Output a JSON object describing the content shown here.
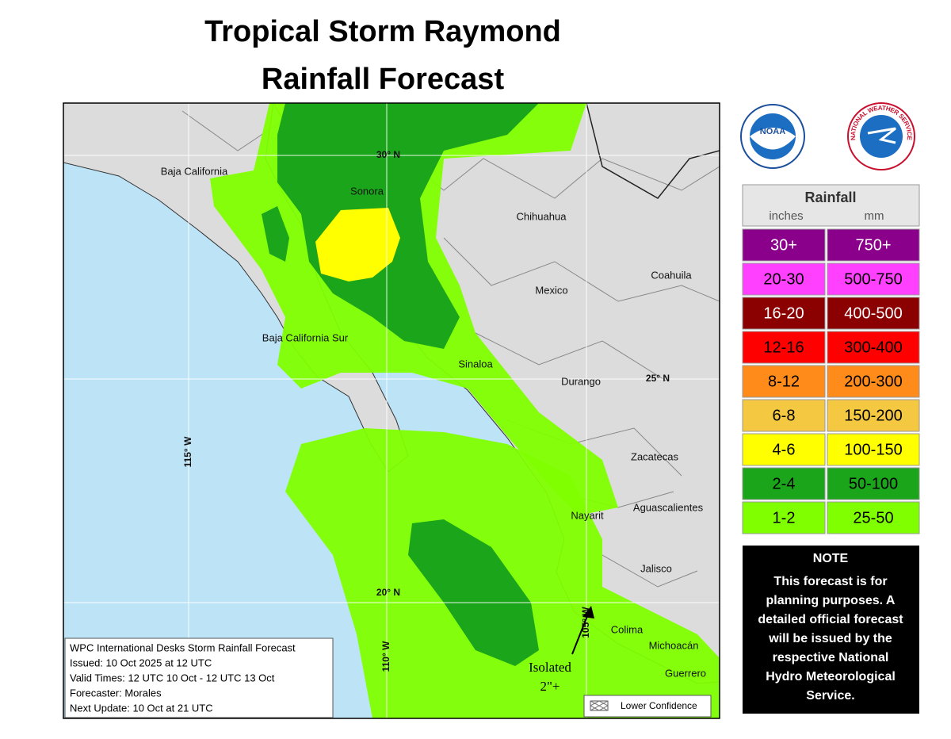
{
  "title": {
    "line1": "Tropical Storm Raymond",
    "line2": "Rainfall Forecast"
  },
  "map_labels": [
    "Baja California",
    "Sonora",
    "Chihuahua",
    "Coahuila",
    "Mexico",
    "Baja California Sur",
    "Sinaloa",
    "Durango",
    "Zacatecas",
    "Aguascalientes",
    "Nayarit",
    "Jalisco",
    "Colima",
    "Michoacán",
    "Guerrero"
  ],
  "grid_labels": [
    "30° N",
    "25° N",
    "20° N",
    "115° W",
    "110° W",
    "105° W"
  ],
  "annotation": {
    "line1": "Isolated",
    "line2": "2\"+"
  },
  "info_box": [
    "WPC International Desks Storm Rainfall Forecast",
    "Issued: 10 Oct 2025 at 12 UTC",
    "Valid Times: 12 UTC 10 Oct - 12 UTC 13 Oct",
    "Forecaster: Morales",
    "Next Update: 10 Oct at 21 UTC"
  ],
  "lower_confidence": "Lower Confidence",
  "logos": {
    "noaa": "NOAA",
    "nws": "NATIONAL WEATHER SERVICE"
  },
  "legend": {
    "title": "Rainfall",
    "units": [
      "inches",
      "mm"
    ],
    "rows": [
      {
        "inches": "30+",
        "mm": "750+",
        "color": "#8b008b",
        "text_color": "#ffffff"
      },
      {
        "inches": "20-30",
        "mm": "500-750",
        "color": "#ff40ff",
        "text_color": "#000000"
      },
      {
        "inches": "16-20",
        "mm": "400-500",
        "color": "#8b0000",
        "text_color": "#ffffff"
      },
      {
        "inches": "12-16",
        "mm": "300-400",
        "color": "#ff0000",
        "text_color": "#000000"
      },
      {
        "inches": "8-12",
        "mm": "200-300",
        "color": "#ff8c1a",
        "text_color": "#000000"
      },
      {
        "inches": "6-8",
        "mm": "150-200",
        "color": "#f5c842",
        "text_color": "#000000"
      },
      {
        "inches": "4-6",
        "mm": "100-150",
        "color": "#ffff00",
        "text_color": "#000000"
      },
      {
        "inches": "2-4",
        "mm": "50-100",
        "color": "#1aa51a",
        "text_color": "#000000"
      },
      {
        "inches": "1-2",
        "mm": "25-50",
        "color": "#7fff00",
        "text_color": "#000000"
      }
    ]
  },
  "note": {
    "title": "NOTE",
    "lines": [
      "This forecast is for",
      "planning purposes. A",
      "detailed official forecast",
      "will be issued by the",
      "respective National",
      "Hydro Meteorological",
      "Service."
    ]
  }
}
